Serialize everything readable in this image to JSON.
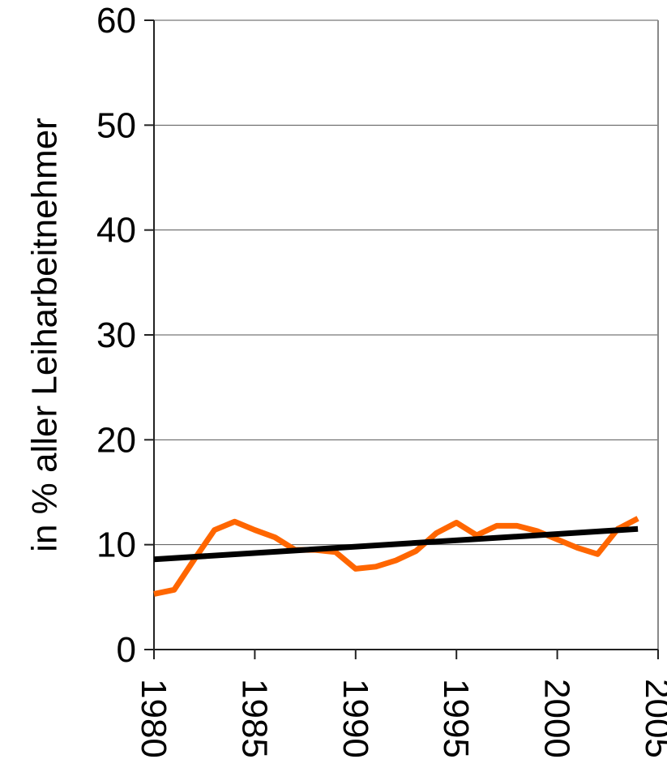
{
  "chart_data": {
    "type": "line",
    "y_label": "in % aller Leiharbeitnehmer",
    "xlim": [
      1980,
      2005
    ],
    "xticks": [
      1980,
      1985,
      1990,
      1995,
      2000,
      2005
    ],
    "ylim": [
      0,
      60
    ],
    "yticks": [
      0,
      10,
      20,
      30,
      40,
      50,
      60
    ],
    "grid": true,
    "series": [
      {
        "color": "#ff6600",
        "x": [
          1980,
          1981,
          1982,
          1983,
          1984,
          1985,
          1986,
          1987,
          1988,
          1989,
          1990,
          1991,
          1992,
          1993,
          1994,
          1995,
          1996,
          1997,
          1998,
          1999,
          2000,
          2001,
          2002,
          2003,
          2004
        ],
        "values": [
          5.3,
          5.7,
          8.6,
          11.4,
          12.2,
          11.4,
          10.7,
          9.5,
          9.5,
          9.3,
          7.7,
          7.9,
          8.5,
          9.4,
          11.1,
          12.1,
          10.9,
          11.8,
          11.8,
          11.3,
          10.5,
          9.7,
          9.1,
          11.5,
          12.5
        ]
      },
      {
        "color": "#000000",
        "x": [
          1980,
          2004
        ],
        "values": [
          8.6,
          11.5
        ]
      }
    ]
  }
}
